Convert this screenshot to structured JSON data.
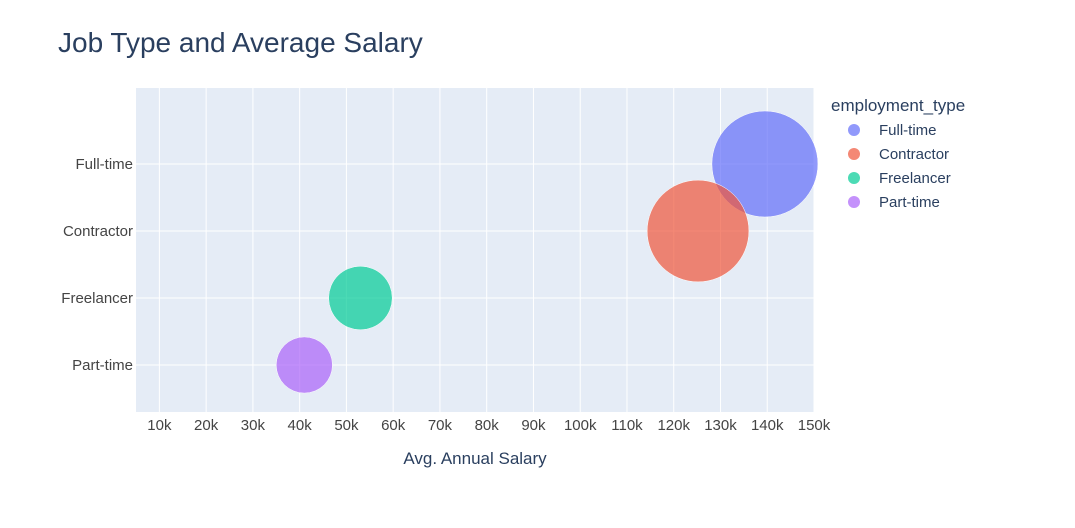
{
  "chart_data": {
    "type": "scatter",
    "title": "Job Type and Average Salary",
    "xlabel": "Avg. Annual Salary",
    "ylabel": "",
    "xlim": [
      5000,
      150000
    ],
    "x_ticks": [
      10000,
      20000,
      30000,
      40000,
      50000,
      60000,
      70000,
      80000,
      90000,
      100000,
      110000,
      120000,
      130000,
      140000,
      150000
    ],
    "x_tick_labels": [
      "10k",
      "20k",
      "30k",
      "40k",
      "50k",
      "60k",
      "70k",
      "80k",
      "90k",
      "100k",
      "110k",
      "120k",
      "130k",
      "140k",
      "150k"
    ],
    "categories": [
      "Full-time",
      "Contractor",
      "Freelancer",
      "Part-time"
    ],
    "grid": true,
    "legend": {
      "title": "employment_type",
      "placement": "right"
    },
    "series": [
      {
        "name": "Full-time",
        "x": 139500,
        "y": "Full-time",
        "size": 1.0,
        "color": "#636efa"
      },
      {
        "name": "Contractor",
        "x": 125200,
        "y": "Contractor",
        "size": 0.96,
        "color": "#ef553b"
      },
      {
        "name": "Freelancer",
        "x": 53000,
        "y": "Freelancer",
        "size": 0.6,
        "color": "#00cc96"
      },
      {
        "name": "Part-time",
        "x": 41000,
        "y": "Part-time",
        "size": 0.53,
        "color": "#ab63fa"
      }
    ]
  }
}
